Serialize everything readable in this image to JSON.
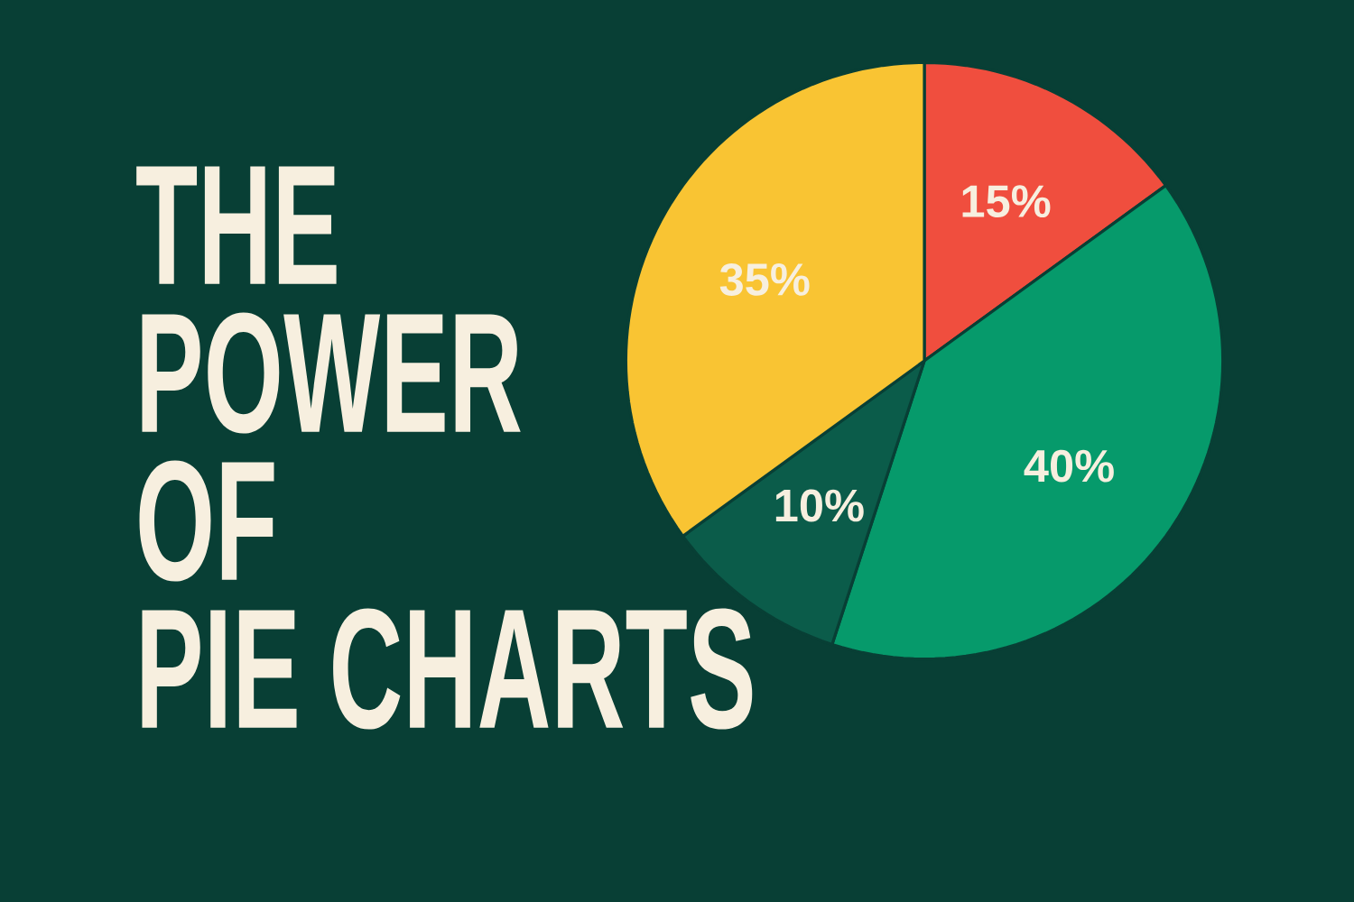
{
  "chart_data": {
    "type": "pie",
    "title": "THE POWER OF PIE CHARTS",
    "categories": [
      null,
      null,
      null,
      null
    ],
    "values": [
      15,
      40,
      10,
      35
    ],
    "colors": [
      "#f04e3e",
      "#069a6b",
      "#0b5c4a",
      "#f9c433"
    ],
    "value_labels": [
      "15%",
      "40%",
      "10%",
      "35%"
    ]
  }
}
